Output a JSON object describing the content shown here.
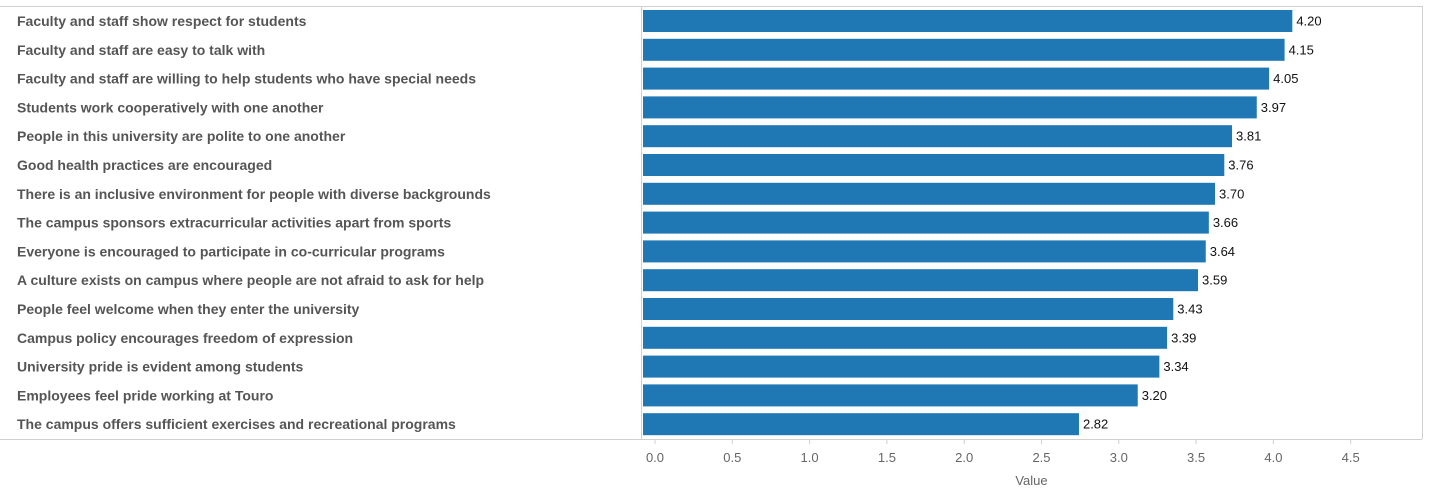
{
  "chart_data": {
    "type": "bar",
    "orientation": "horizontal",
    "categories": [
      "Faculty and staff show respect for students",
      "Faculty and staff are easy to talk with",
      "Faculty and staff are willing to help students who have special needs",
      "Students work cooperatively with one another",
      "People in this university are polite to one another",
      "Good health practices are encouraged",
      "There is an inclusive environment for people with diverse backgrounds",
      "The campus sponsors extracurricular activities apart from sports",
      "Everyone is encouraged to participate in co-curricular programs",
      "A culture exists on campus where people are not afraid to ask for help",
      "People feel welcome when they enter the university",
      "Campus policy encourages freedom of expression",
      "University pride is evident among students",
      "Employees feel pride working at Touro",
      "The campus offers sufficient exercises and recreational programs"
    ],
    "values": [
      4.2,
      4.15,
      4.05,
      3.97,
      3.81,
      3.76,
      3.7,
      3.66,
      3.64,
      3.59,
      3.43,
      3.39,
      3.34,
      3.2,
      2.82
    ],
    "value_labels": [
      "4.20",
      "4.15",
      "4.05",
      "3.97",
      "3.81",
      "3.76",
      "3.70",
      "3.66",
      "3.64",
      "3.59",
      "3.43",
      "3.39",
      "3.34",
      "3.20",
      "2.82"
    ],
    "xlabel": "Value",
    "ylabel": "",
    "xlim": [
      0,
      4.6
    ],
    "xticks": [
      "0.0",
      "0.5",
      "1.0",
      "1.5",
      "2.0",
      "2.5",
      "3.0",
      "3.5",
      "4.0",
      "4.5"
    ],
    "bar_color": "#1f77b4",
    "grid": false
  }
}
